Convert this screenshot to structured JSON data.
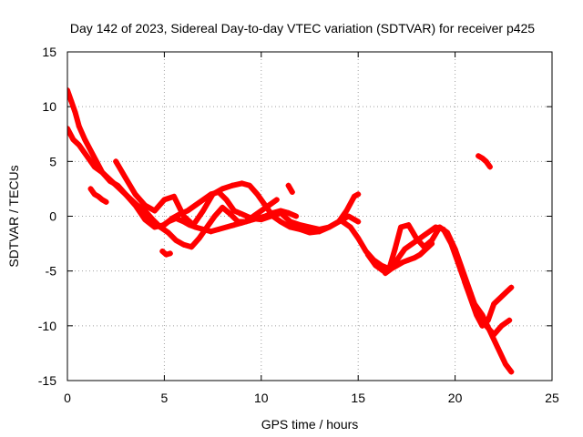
{
  "chart_data": {
    "type": "scatter",
    "title": "Day 142 of 2023, Sidereal Day-to-day VTEC variation (SDTVAR) for receiver p425",
    "xlabel": "GPS time / hours",
    "ylabel": "SDTVAR / TECUs",
    "xlim": [
      0,
      25
    ],
    "ylim": [
      -15,
      15
    ],
    "xticks": [
      0,
      5,
      10,
      15,
      20,
      25
    ],
    "yticks": [
      -15,
      -10,
      -5,
      0,
      5,
      10,
      15
    ],
    "grid": true,
    "legend": "none",
    "color": "#ff0000",
    "series": [
      {
        "name": "trace-1",
        "x": [
          0.0,
          0.2,
          0.4,
          0.6,
          0.9,
          1.2,
          1.5,
          1.8,
          2.1,
          2.4,
          2.7,
          3.0,
          3.3,
          3.6,
          4.0,
          4.4,
          4.8,
          5.2,
          5.6,
          6.0,
          6.3,
          6.6,
          7.0,
          7.4,
          7.8,
          8.2,
          8.6,
          9.0,
          9.4,
          9.8,
          10.2,
          10.6,
          11.0,
          11.4,
          11.8
        ],
        "y": [
          11.5,
          10.5,
          9.5,
          8.2,
          7.0,
          6.0,
          5.0,
          4.0,
          3.5,
          3.0,
          2.5,
          2.0,
          1.5,
          1.0,
          0.5,
          -0.3,
          -1.0,
          -0.5,
          -0.2,
          -0.5,
          -0.8,
          -1.0,
          -1.2,
          -1.4,
          -1.2,
          -1.0,
          -0.8,
          -0.6,
          -0.4,
          -0.2,
          0.0,
          0.3,
          0.5,
          0.3,
          0.0
        ]
      },
      {
        "name": "trace-2",
        "x": [
          0.0,
          0.3,
          0.6,
          1.0,
          1.4,
          1.8,
          2.2,
          2.6,
          3.0,
          3.5,
          4.0,
          4.5,
          5.0,
          5.4,
          5.8,
          6.2,
          6.6,
          7.0,
          7.4,
          7.8,
          8.2,
          8.6,
          9.0,
          9.5,
          10.0,
          10.5,
          11.0,
          11.5,
          12.0,
          12.5,
          13.0,
          13.5,
          14.0,
          14.5,
          15.0
        ],
        "y": [
          8.0,
          7.0,
          6.5,
          5.5,
          4.5,
          4.0,
          3.2,
          2.8,
          2.0,
          1.0,
          -0.3,
          -1.0,
          -0.8,
          -0.2,
          0.2,
          0.5,
          1.0,
          1.5,
          2.0,
          2.2,
          1.5,
          0.5,
          0.2,
          -0.2,
          -0.3,
          0.0,
          0.3,
          -0.5,
          -0.8,
          -1.0,
          -1.2,
          -1.0,
          -0.5,
          0.0,
          -0.5
        ]
      },
      {
        "name": "trace-3",
        "x": [
          2.5,
          3.0,
          3.5,
          4.0,
          4.5,
          5.0,
          5.5,
          6.0,
          6.5,
          7.0,
          7.5,
          8.0,
          8.5,
          9.0,
          9.4,
          9.8,
          10.2,
          10.6,
          11.0,
          11.5,
          12.0,
          12.5,
          13.0,
          13.5,
          14.0,
          14.4,
          14.8,
          15.0
        ],
        "y": [
          5.0,
          3.5,
          2.0,
          1.0,
          0.5,
          1.5,
          1.8,
          0.0,
          -0.8,
          0.5,
          2.0,
          2.5,
          2.8,
          3.0,
          2.8,
          2.0,
          1.0,
          0.0,
          -0.5,
          -1.0,
          -1.2,
          -1.5,
          -1.4,
          -1.0,
          -0.5,
          0.5,
          1.8,
          2.0
        ]
      },
      {
        "name": "trace-4",
        "x": [
          4.0,
          4.4,
          4.8,
          5.2,
          5.6,
          6.0,
          6.4,
          6.8,
          7.2,
          7.6,
          8.0,
          8.4,
          8.8,
          9.2,
          9.6,
          10.0,
          10.4,
          10.8
        ],
        "y": [
          0.2,
          -0.5,
          -1.0,
          -1.5,
          -2.2,
          -2.6,
          -2.8,
          -2.0,
          -1.0,
          0.0,
          0.8,
          0.2,
          -0.5,
          -0.5,
          0.0,
          0.5,
          1.0,
          1.5
        ]
      },
      {
        "name": "trace-5",
        "x": [
          14.2,
          14.6,
          15.0,
          15.4,
          15.8,
          16.2,
          16.6,
          17.0,
          17.4,
          17.8,
          18.2,
          18.6,
          19.0,
          19.4,
          19.8,
          20.2,
          20.6,
          21.0,
          21.4,
          21.8,
          22.2,
          22.6,
          22.9
        ],
        "y": [
          -0.5,
          -1.0,
          -2.0,
          -3.2,
          -4.0,
          -4.5,
          -4.8,
          -4.0,
          -3.0,
          -2.5,
          -2.0,
          -1.5,
          -1.0,
          -1.2,
          -2.5,
          -4.5,
          -6.5,
          -8.0,
          -9.0,
          -10.5,
          -12.0,
          -13.5,
          -14.2
        ]
      },
      {
        "name": "trace-6",
        "x": [
          15.5,
          15.9,
          16.3,
          16.6,
          16.9,
          17.2,
          17.6,
          18.0,
          18.4,
          18.8,
          19.2,
          19.6,
          20.0,
          20.4,
          20.8,
          21.2,
          21.6,
          22.0,
          22.4,
          22.8
        ],
        "y": [
          -3.5,
          -4.5,
          -5.0,
          -4.8,
          -3.0,
          -1.0,
          -0.8,
          -2.0,
          -2.8,
          -2.2,
          -1.0,
          -1.5,
          -3.0,
          -5.0,
          -7.0,
          -9.0,
          -10.0,
          -10.8,
          -10.0,
          -9.5
        ]
      },
      {
        "name": "trace-7",
        "x": [
          16.4,
          16.7,
          17.0,
          17.3,
          17.6,
          17.9,
          18.2,
          18.5,
          18.8
        ],
        "y": [
          -5.2,
          -4.8,
          -4.5,
          -4.2,
          -4.0,
          -3.8,
          -3.5,
          -3.0,
          -2.5
        ]
      },
      {
        "name": "trace-8",
        "x": [
          20.5,
          20.8,
          21.1,
          21.4,
          21.7,
          22.0,
          22.3,
          22.6,
          22.9
        ],
        "y": [
          -6.0,
          -7.5,
          -9.0,
          -10.0,
          -9.5,
          -8.0,
          -7.5,
          -7.0,
          -6.5
        ]
      },
      {
        "name": "trace-9",
        "x": [
          21.2,
          21.4,
          21.6,
          21.8
        ],
        "y": [
          5.5,
          5.3,
          5.0,
          4.5
        ]
      },
      {
        "name": "trace-10",
        "x": [
          1.2,
          1.4,
          1.6,
          1.8,
          2.0
        ],
        "y": [
          2.5,
          2.0,
          1.8,
          1.5,
          1.3
        ]
      },
      {
        "name": "trace-11",
        "x": [
          4.9,
          5.1,
          5.3
        ],
        "y": [
          -3.2,
          -3.5,
          -3.4
        ]
      },
      {
        "name": "trace-12",
        "x": [
          11.4,
          11.6
        ],
        "y": [
          2.8,
          2.2
        ]
      }
    ]
  }
}
